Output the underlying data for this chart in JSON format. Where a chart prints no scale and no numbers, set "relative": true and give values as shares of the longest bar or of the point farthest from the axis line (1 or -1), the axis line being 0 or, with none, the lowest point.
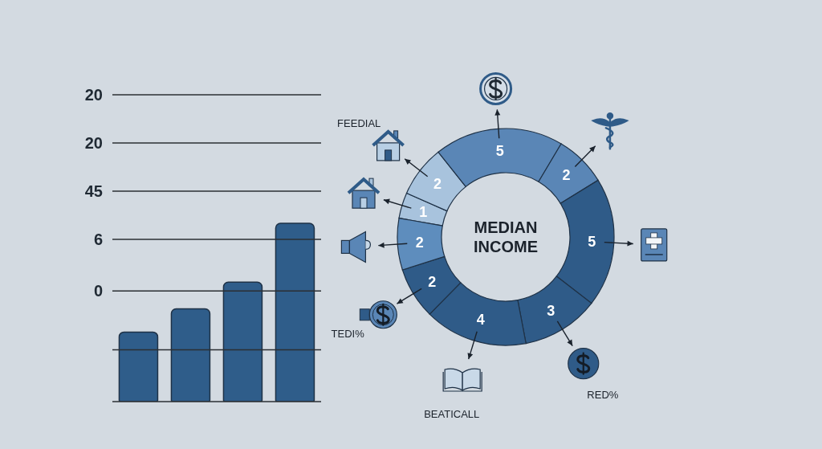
{
  "chart_data": [
    {
      "type": "bar",
      "relative": true,
      "categories": [
        null,
        null,
        null,
        null
      ],
      "values": [
        0.39,
        0.52,
        0.67,
        1
      ],
      "color": "#2f5d8a",
      "ref_lines": [
        {
          "axis": "y",
          "value": 1.72
        },
        {
          "axis": "y",
          "value": 1.45
        },
        {
          "axis": "y",
          "value": 1.18
        },
        {
          "axis": "y",
          "value": 0.91
        },
        {
          "axis": "y",
          "value": 0.62
        },
        {
          "axis": "y",
          "value": 0.29
        }
      ],
      "annotations": [
        "20",
        "20",
        "45",
        "6",
        "0"
      ]
    },
    {
      "type": "donut",
      "categories": [
        null,
        null,
        null,
        null,
        null,
        null,
        null,
        null,
        null
      ],
      "values": [
        1,
        2,
        5,
        2,
        5,
        3,
        4,
        2,
        2
      ],
      "colors": [
        "#a8c3dd",
        "#a8c3dd",
        "#5a86b6",
        "#5a86b6",
        "#2f5b88",
        "#2f5b88",
        "#2f5b88",
        "#2f5b88",
        "#5e8dbd"
      ],
      "data_labels": true,
      "annotations": [
        "MEDIAN INCOME",
        "FEEDIAL",
        "RED%",
        "BEATICALL",
        "TEDI%"
      ]
    }
  ]
}
